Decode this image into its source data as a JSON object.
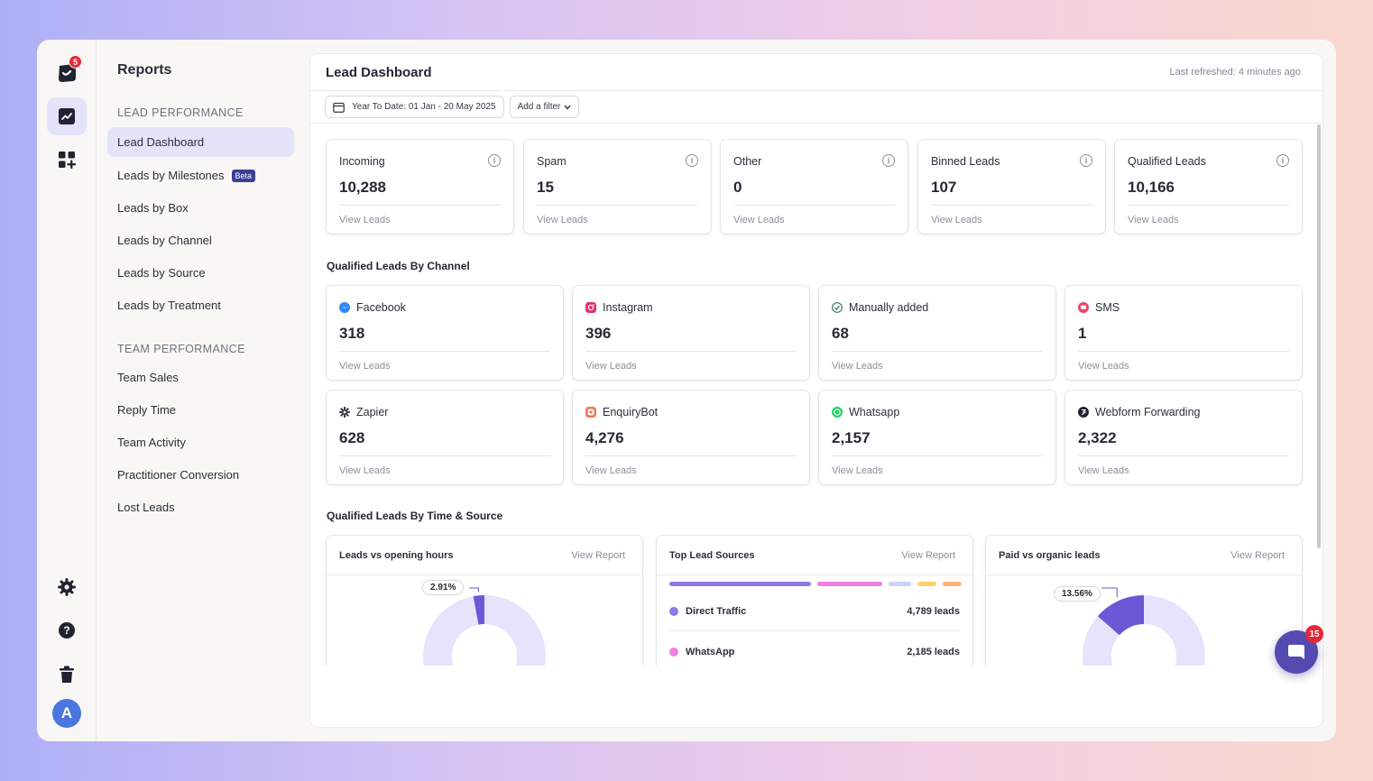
{
  "rail": {
    "logo_badge": "5",
    "avatar_initial": "A"
  },
  "sidebar": {
    "title": "Reports",
    "sections": [
      {
        "heading": "LEAD PERFORMANCE",
        "items": [
          {
            "label": "Lead Dashboard",
            "active": true
          },
          {
            "label": "Leads by Milestones",
            "badge": "Beta"
          },
          {
            "label": "Leads by Box"
          },
          {
            "label": "Leads by Channel"
          },
          {
            "label": "Leads by Source"
          },
          {
            "label": "Leads by Treatment"
          }
        ]
      },
      {
        "heading": "TEAM PERFORMANCE",
        "items": [
          {
            "label": "Team Sales"
          },
          {
            "label": "Reply Time"
          },
          {
            "label": "Team Activity"
          },
          {
            "label": "Practitioner Conversion"
          },
          {
            "label": "Lost Leads"
          }
        ]
      }
    ]
  },
  "main": {
    "title": "Lead Dashboard",
    "last_refreshed": "Last refreshed: 4 minutes ago",
    "date_filter": "Year To Date: 01 Jan - 20 May 2025",
    "add_filter": "Add a filter"
  },
  "summary_cards": [
    {
      "label": "Incoming",
      "value": "10,288",
      "link": "View Leads"
    },
    {
      "label": "Spam",
      "value": "15",
      "link": "View Leads"
    },
    {
      "label": "Other",
      "value": "0",
      "link": "View Leads"
    },
    {
      "label": "Binned Leads",
      "value": "107",
      "link": "View Leads"
    },
    {
      "label": "Qualified Leads",
      "value": "10,166",
      "link": "View Leads"
    }
  ],
  "channel_section_title": "Qualified Leads By Channel",
  "channels": [
    {
      "label": "Facebook",
      "value": "318",
      "link": "View Leads",
      "icon": "messenger-icon",
      "color": "#2d88ff"
    },
    {
      "label": "Instagram",
      "value": "396",
      "link": "View Leads",
      "icon": "instagram-icon",
      "color": "#e1306c"
    },
    {
      "label": "Manually added",
      "value": "68",
      "link": "View Leads",
      "icon": "check-circle-icon",
      "color": "#2f7d6d"
    },
    {
      "label": "SMS",
      "value": "1",
      "link": "View Leads",
      "icon": "sms-icon",
      "color": "#e8486a"
    },
    {
      "label": "Zapier",
      "value": "628",
      "link": "View Leads",
      "icon": "zapier-icon",
      "color": "#1f2430"
    },
    {
      "label": "EnquiryBot",
      "value": "4,276",
      "link": "View Leads",
      "icon": "enquirybot-icon",
      "color": "#f07a5a"
    },
    {
      "label": "Whatsapp",
      "value": "2,157",
      "link": "View Leads",
      "icon": "whatsapp-icon",
      "color": "#25d366"
    },
    {
      "label": "Webform Forwarding",
      "value": "2,322",
      "link": "View Leads",
      "icon": "webform-icon",
      "color": "#1f2430"
    }
  ],
  "time_section_title": "Qualified Leads By Time & Source",
  "bottom_cards": {
    "opening_hours": {
      "title": "Leads vs opening hours",
      "link": "View Report",
      "percent_label": "2.91%",
      "percent": 2.91
    },
    "top_sources": {
      "title": "Top Lead Sources",
      "link": "View Report",
      "bar_colors": [
        "#8f78e3",
        "#f27ee0",
        "#c9d5fb",
        "#ffcf6e",
        "#ffb37b"
      ],
      "rows": [
        {
          "name": "Direct Traffic",
          "value": "4,789 leads",
          "color": "#8f78e3"
        },
        {
          "name": "WhatsApp",
          "value": "2,185 leads",
          "color": "#f27ee0"
        }
      ]
    },
    "paid_organic": {
      "title": "Paid vs organic leads",
      "link": "View Report",
      "percent_label": "13.56%",
      "percent": 13.56
    }
  },
  "chat": {
    "badge": "15"
  },
  "colors": {
    "accent": "#534bb0",
    "donut_base": "#e6e3fc",
    "donut_fill": "#6c57d6"
  }
}
